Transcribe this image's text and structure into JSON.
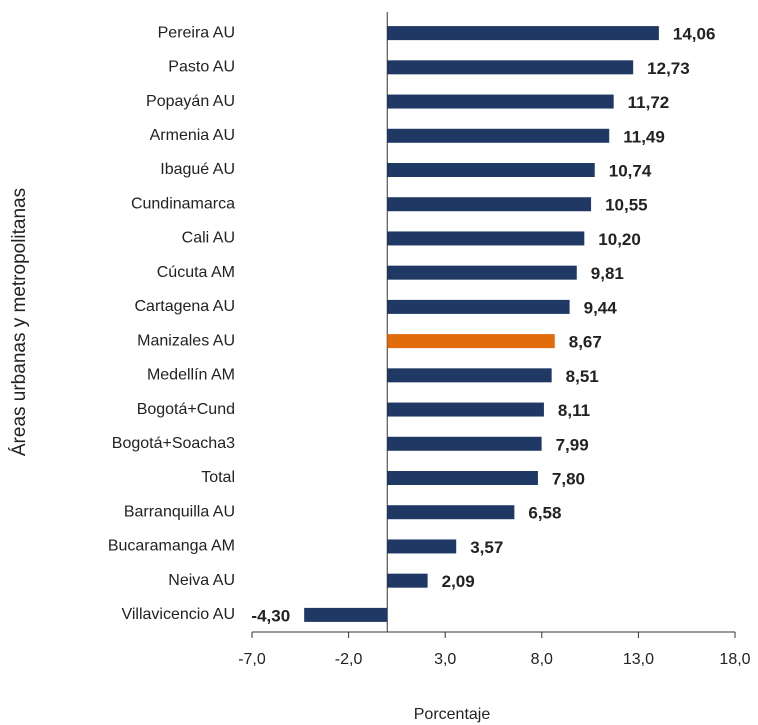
{
  "chart_data": {
    "type": "barh",
    "xlabel": "Porcentaje",
    "ylabel": "Áreas urbanas y metropolitanas",
    "categories": [
      "Pereira AU",
      "Pasto AU",
      "Popayán AU",
      "Armenia AU",
      "Ibagué AU",
      "Cundinamarca",
      "Cali AU",
      "Cúcuta AM",
      "Cartagena AU",
      "Manizales AU",
      "Medellín AM",
      "Bogotá+Cund",
      "Bogotá+Soacha3",
      "Total",
      "Barranquilla AU",
      "Bucaramanga AM",
      "Neiva AU",
      "Villavicencio AU"
    ],
    "values": [
      14.06,
      12.73,
      11.72,
      11.49,
      10.74,
      10.55,
      10.2,
      9.81,
      9.44,
      8.67,
      8.51,
      8.11,
      7.99,
      7.8,
      6.58,
      3.57,
      2.09,
      -4.3
    ],
    "value_labels": [
      "14,06",
      "12,73",
      "11,72",
      "11,49",
      "10,74",
      "10,55",
      "10,20",
      "9,81",
      "9,44",
      "8,67",
      "8,51",
      "8,11",
      "7,99",
      "7,80",
      "6,58",
      "3,57",
      "2,09",
      "-4,30"
    ],
    "colors": [
      "#1f3864",
      "#1f3864",
      "#1f3864",
      "#1f3864",
      "#1f3864",
      "#1f3864",
      "#1f3864",
      "#1f3864",
      "#1f3864",
      "#e36c0a",
      "#1f3864",
      "#1f3864",
      "#1f3864",
      "#1f3864",
      "#1f3864",
      "#1f3864",
      "#1f3864",
      "#1f3864"
    ],
    "xlim": [
      -7,
      18
    ],
    "xticks": [
      {
        "value": -7,
        "label": "-7,0"
      },
      {
        "value": -2,
        "label": "-2,0"
      },
      {
        "value": 3,
        "label": "3,0"
      },
      {
        "value": 8,
        "label": "8,0"
      },
      {
        "value": 13,
        "label": "13,0"
      },
      {
        "value": 18,
        "label": "18,0"
      }
    ]
  }
}
